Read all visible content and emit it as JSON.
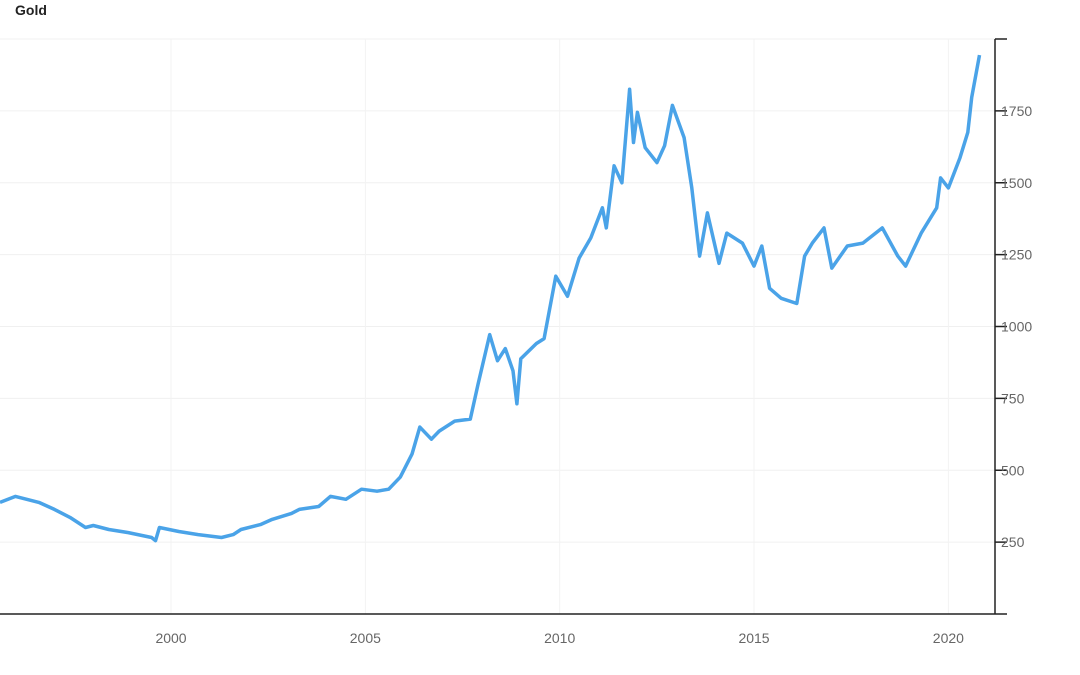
{
  "chart_data": {
    "type": "line",
    "title": "Gold",
    "xlabel": "",
    "ylabel": "",
    "xlim": [
      1995.6,
      2021.2
    ],
    "ylim": [
      0,
      2000
    ],
    "x_ticks": [
      2000,
      2005,
      2010,
      2015,
      2020
    ],
    "x_tick_labels": [
      "2000",
      "2005",
      "2010",
      "2015",
      "2020"
    ],
    "y_ticks": [
      250,
      500,
      750,
      1000,
      1250,
      1500,
      1750,
      2000
    ],
    "y_tick_labels": [
      "250",
      "500",
      "750",
      "1000",
      "1250",
      "1500",
      "1750",
      ""
    ],
    "y_axis_position": "right",
    "grid": true,
    "line_color": "#4aa3e8",
    "series": [
      {
        "name": "Gold",
        "x": [
          1995.6,
          1996.0,
          1996.6,
          1997.0,
          1997.4,
          1997.8,
          1998.0,
          1998.4,
          1998.9,
          1999.5,
          1999.6,
          1999.7,
          2000.2,
          2000.7,
          2001.3,
          2001.6,
          2001.8,
          2002.3,
          2002.6,
          2003.1,
          2003.3,
          2003.8,
          2004.1,
          2004.5,
          2004.9,
          2005.3,
          2005.6,
          2005.9,
          2006.2,
          2006.4,
          2006.7,
          2006.9,
          2007.3,
          2007.7,
          2007.9,
          2008.2,
          2008.4,
          2008.6,
          2008.8,
          2008.9,
          2009.0,
          2009.4,
          2009.6,
          2009.9,
          2010.2,
          2010.5,
          2010.8,
          2011.1,
          2011.2,
          2011.4,
          2011.6,
          2011.8,
          2011.9,
          2012.0,
          2012.2,
          2012.5,
          2012.7,
          2012.9,
          2013.2,
          2013.4,
          2013.6,
          2013.8,
          2014.1,
          2014.3,
          2014.7,
          2015.0,
          2015.2,
          2015.4,
          2015.7,
          2016.1,
          2016.3,
          2016.5,
          2016.8,
          2017.0,
          2017.4,
          2017.8,
          2018.3,
          2018.7,
          2018.9,
          2019.3,
          2019.7,
          2019.8,
          2020.0,
          2020.3,
          2020.5,
          2020.6,
          2020.8
        ],
        "y": [
          388,
          409,
          388,
          364,
          336,
          301,
          308,
          294,
          283,
          266,
          255,
          301,
          287,
          276,
          266,
          276,
          294,
          311,
          329,
          350,
          364,
          374,
          409,
          399,
          434,
          427,
          434,
          476,
          556,
          650,
          608,
          636,
          671,
          678,
          800,
          972,
          881,
          923,
          846,
          731,
          888,
          941,
          958,
          1175,
          1105,
          1238,
          1308,
          1413,
          1343,
          1559,
          1500,
          1825,
          1640,
          1745,
          1622,
          1570,
          1629,
          1769,
          1657,
          1482,
          1245,
          1395,
          1220,
          1325,
          1290,
          1210,
          1280,
          1133,
          1098,
          1080,
          1245,
          1290,
          1343,
          1203,
          1280,
          1290,
          1343,
          1245,
          1210,
          1325,
          1413,
          1517,
          1482,
          1587,
          1675,
          1797,
          1944
        ]
      }
    ]
  }
}
